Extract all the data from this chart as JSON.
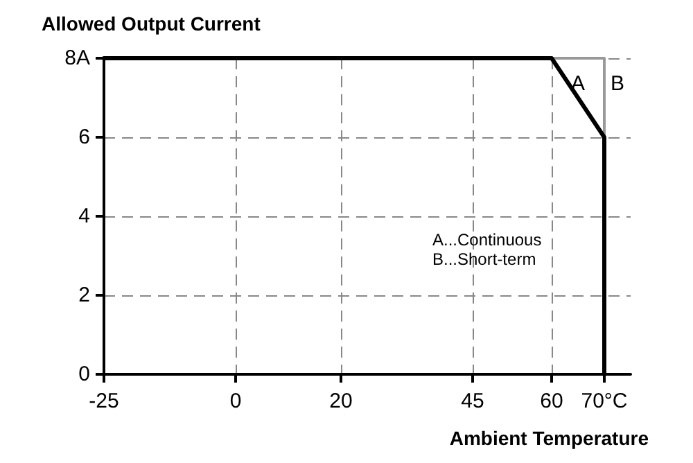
{
  "chart_data": {
    "type": "line",
    "ylabel": "Allowed Output Current",
    "xlabel": "Ambient Temperature",
    "xlim": [
      -25,
      75
    ],
    "xticks": [
      -25,
      0,
      20,
      45,
      60,
      {
        "value": 70,
        "label": "70°C"
      }
    ],
    "ylim": [
      0,
      8
    ],
    "yticks": [
      0,
      2,
      4,
      6,
      {
        "value": 8,
        "label": "8A"
      }
    ],
    "series": [
      {
        "color": "#999999",
        "x": [
          60,
          70,
          70
        ],
        "values": [
          8,
          8,
          6
        ]
      },
      {
        "color": "#000000",
        "x": [
          -25,
          60,
          70,
          70
        ],
        "values": [
          8,
          8,
          6,
          0
        ]
      }
    ],
    "annotations": [
      {
        "text": "A",
        "x": 65,
        "y": 7.35
      },
      {
        "text": "B",
        "x": 72.5,
        "y": 7.35
      },
      "A...Continuous\nB...Short-term"
    ],
    "grid": true,
    "marker": "none",
    "line_style": "solid"
  }
}
